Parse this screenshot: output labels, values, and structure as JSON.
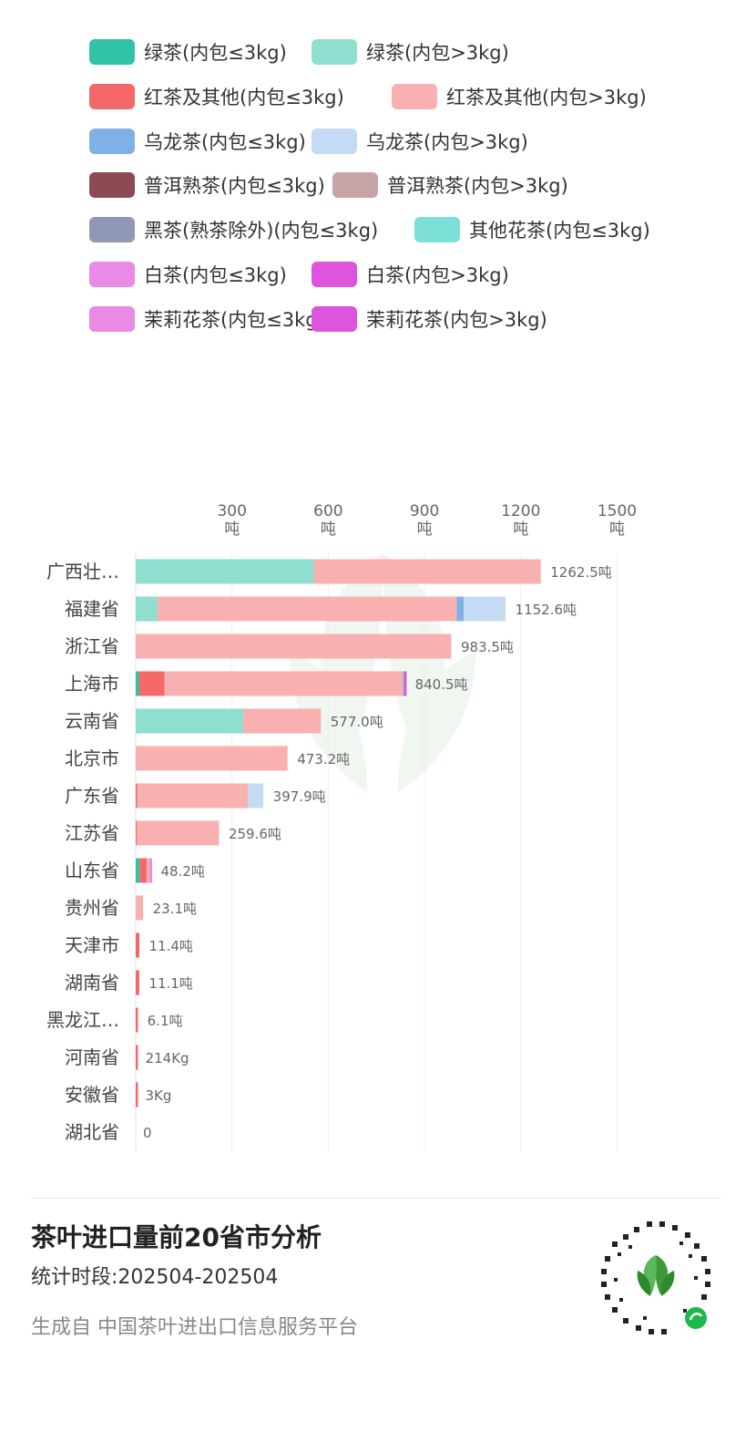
{
  "legend": [
    {
      "label": "绿茶(内包≤3kg)",
      "color": "#2ec4a4"
    },
    {
      "label": "绿茶(内包>3kg)",
      "color": "#8fded0"
    },
    {
      "label": "红茶及其他(内包≤3kg)",
      "color": "#f56868"
    },
    {
      "label": "红茶及其他(内包>3kg)",
      "color": "#f8b0b0"
    },
    {
      "label": "乌龙茶(内包≤3kg)",
      "color": "#7fb1e6"
    },
    {
      "label": "乌龙茶(内包>3kg)",
      "color": "#c4dbf3"
    },
    {
      "label": "普洱熟茶(内包≤3kg)",
      "color": "#8c4a52"
    },
    {
      "label": "普洱熟茶(内包>3kg)",
      "color": "#c7a4a6"
    },
    {
      "label": "黑茶(熟茶除外)(内包≤3kg)",
      "color": "#8f98b4"
    },
    {
      "label": "其他花茶(内包≤3kg)",
      "color": "#7de0d8"
    },
    {
      "label": "白茶(内包≤3kg)",
      "color": "#e88ae6"
    },
    {
      "label": "白茶(内包>3kg)",
      "color": "#dc55dc"
    },
    {
      "label": "茉莉花茶(内包≤3kg)",
      "color": "#e88ae6"
    },
    {
      "label": "茉莉花茶(内包>3kg)",
      "color": "#dc55dc"
    }
  ],
  "chart_data": {
    "type": "bar",
    "orientation": "horizontal",
    "stacked": true,
    "title": "",
    "xlim": [
      0,
      1500
    ],
    "ticks": [
      {
        "value": 300,
        "label": "300",
        "unit": "吨"
      },
      {
        "value": 600,
        "label": "600",
        "unit": "吨"
      },
      {
        "value": 900,
        "label": "900",
        "unit": "吨"
      },
      {
        "value": 1200,
        "label": "1200",
        "unit": "吨"
      },
      {
        "value": 1500,
        "label": "1500",
        "unit": "吨"
      }
    ],
    "grid": true,
    "categories": [
      "广西壮…",
      "福建省",
      "浙江省",
      "上海市",
      "云南省",
      "北京市",
      "广东省",
      "江苏省",
      "山东省",
      "贵州省",
      "天津市",
      "湖南省",
      "黑龙江…",
      "河南省",
      "安徽省",
      "湖北省"
    ],
    "totals": [
      "1262.5吨",
      "1152.6吨",
      "983.5吨",
      "840.5吨",
      "577.0吨",
      "473.2吨",
      "397.9吨",
      "259.6吨",
      "48.2吨",
      "23.1吨",
      "11.4吨",
      "11.1吨",
      "6.1吨",
      "214Kg",
      "3Kg",
      "0"
    ],
    "segments": [
      [
        {
          "series": "绿茶(内包>3kg)",
          "value": 555
        },
        {
          "series": "红茶及其他(内包>3kg)",
          "value": 707.5
        }
      ],
      [
        {
          "series": "绿茶(内包>3kg)",
          "value": 68
        },
        {
          "series": "红茶及其他(内包>3kg)",
          "value": 932
        },
        {
          "series": "乌龙茶(内包≤3kg)",
          "value": 22
        },
        {
          "series": "乌龙茶(内包>3kg)",
          "value": 130.6
        }
      ],
      [
        {
          "series": "红茶及其他(内包>3kg)",
          "value": 983.5
        }
      ],
      [
        {
          "series": "绿茶(内包≤3kg)",
          "value": 10
        },
        {
          "series": "红茶及其他(内包≤3kg)",
          "value": 80
        },
        {
          "series": "红茶及其他(内包>3kg)",
          "value": 743
        },
        {
          "series": "乌龙茶(内包≤3kg)",
          "value": 4
        },
        {
          "series": "白茶(内包>3kg)",
          "value": 3.5
        }
      ],
      [
        {
          "series": "绿茶(内包>3kg)",
          "value": 335
        },
        {
          "series": "红茶及其他(内包>3kg)",
          "value": 242
        }
      ],
      [
        {
          "series": "红茶及其他(内包>3kg)",
          "value": 473.2
        }
      ],
      [
        {
          "series": "红茶及其他(内包≤3kg)",
          "value": 4
        },
        {
          "series": "红茶及其他(内包>3kg)",
          "value": 346
        },
        {
          "series": "乌龙茶(内包>3kg)",
          "value": 47.9
        }
      ],
      [
        {
          "series": "红茶及其他(内包≤3kg)",
          "value": 3
        },
        {
          "series": "红茶及其他(内包>3kg)",
          "value": 256.6
        }
      ],
      [
        {
          "series": "绿茶(内包≤3kg)",
          "value": 12
        },
        {
          "series": "红茶及其他(内包≤3kg)",
          "value": 22
        },
        {
          "series": "红茶及其他(内包>3kg)",
          "value": 10
        },
        {
          "series": "白茶(内包≤3kg)",
          "value": 4.2
        }
      ],
      [
        {
          "series": "红茶及其他(内包>3kg)",
          "value": 23.1
        }
      ],
      [
        {
          "series": "红茶及其他(内包≤3kg)",
          "value": 11.4
        }
      ],
      [
        {
          "series": "红茶及其他(内包≤3kg)",
          "value": 11.1
        }
      ],
      [
        {
          "series": "红茶及其他(内包≤3kg)",
          "value": 6.1
        }
      ],
      [
        {
          "series": "红茶及其他(内包≤3kg)",
          "value": 0.214
        }
      ],
      [
        {
          "series": "红茶及其他(内包≤3kg)",
          "value": 0.003
        }
      ],
      []
    ]
  },
  "footer": {
    "title": "茶叶进口量前20省市分析",
    "period": "统计时段:202504-202504",
    "source": "生成自 中国茶叶进出口信息服务平台"
  }
}
